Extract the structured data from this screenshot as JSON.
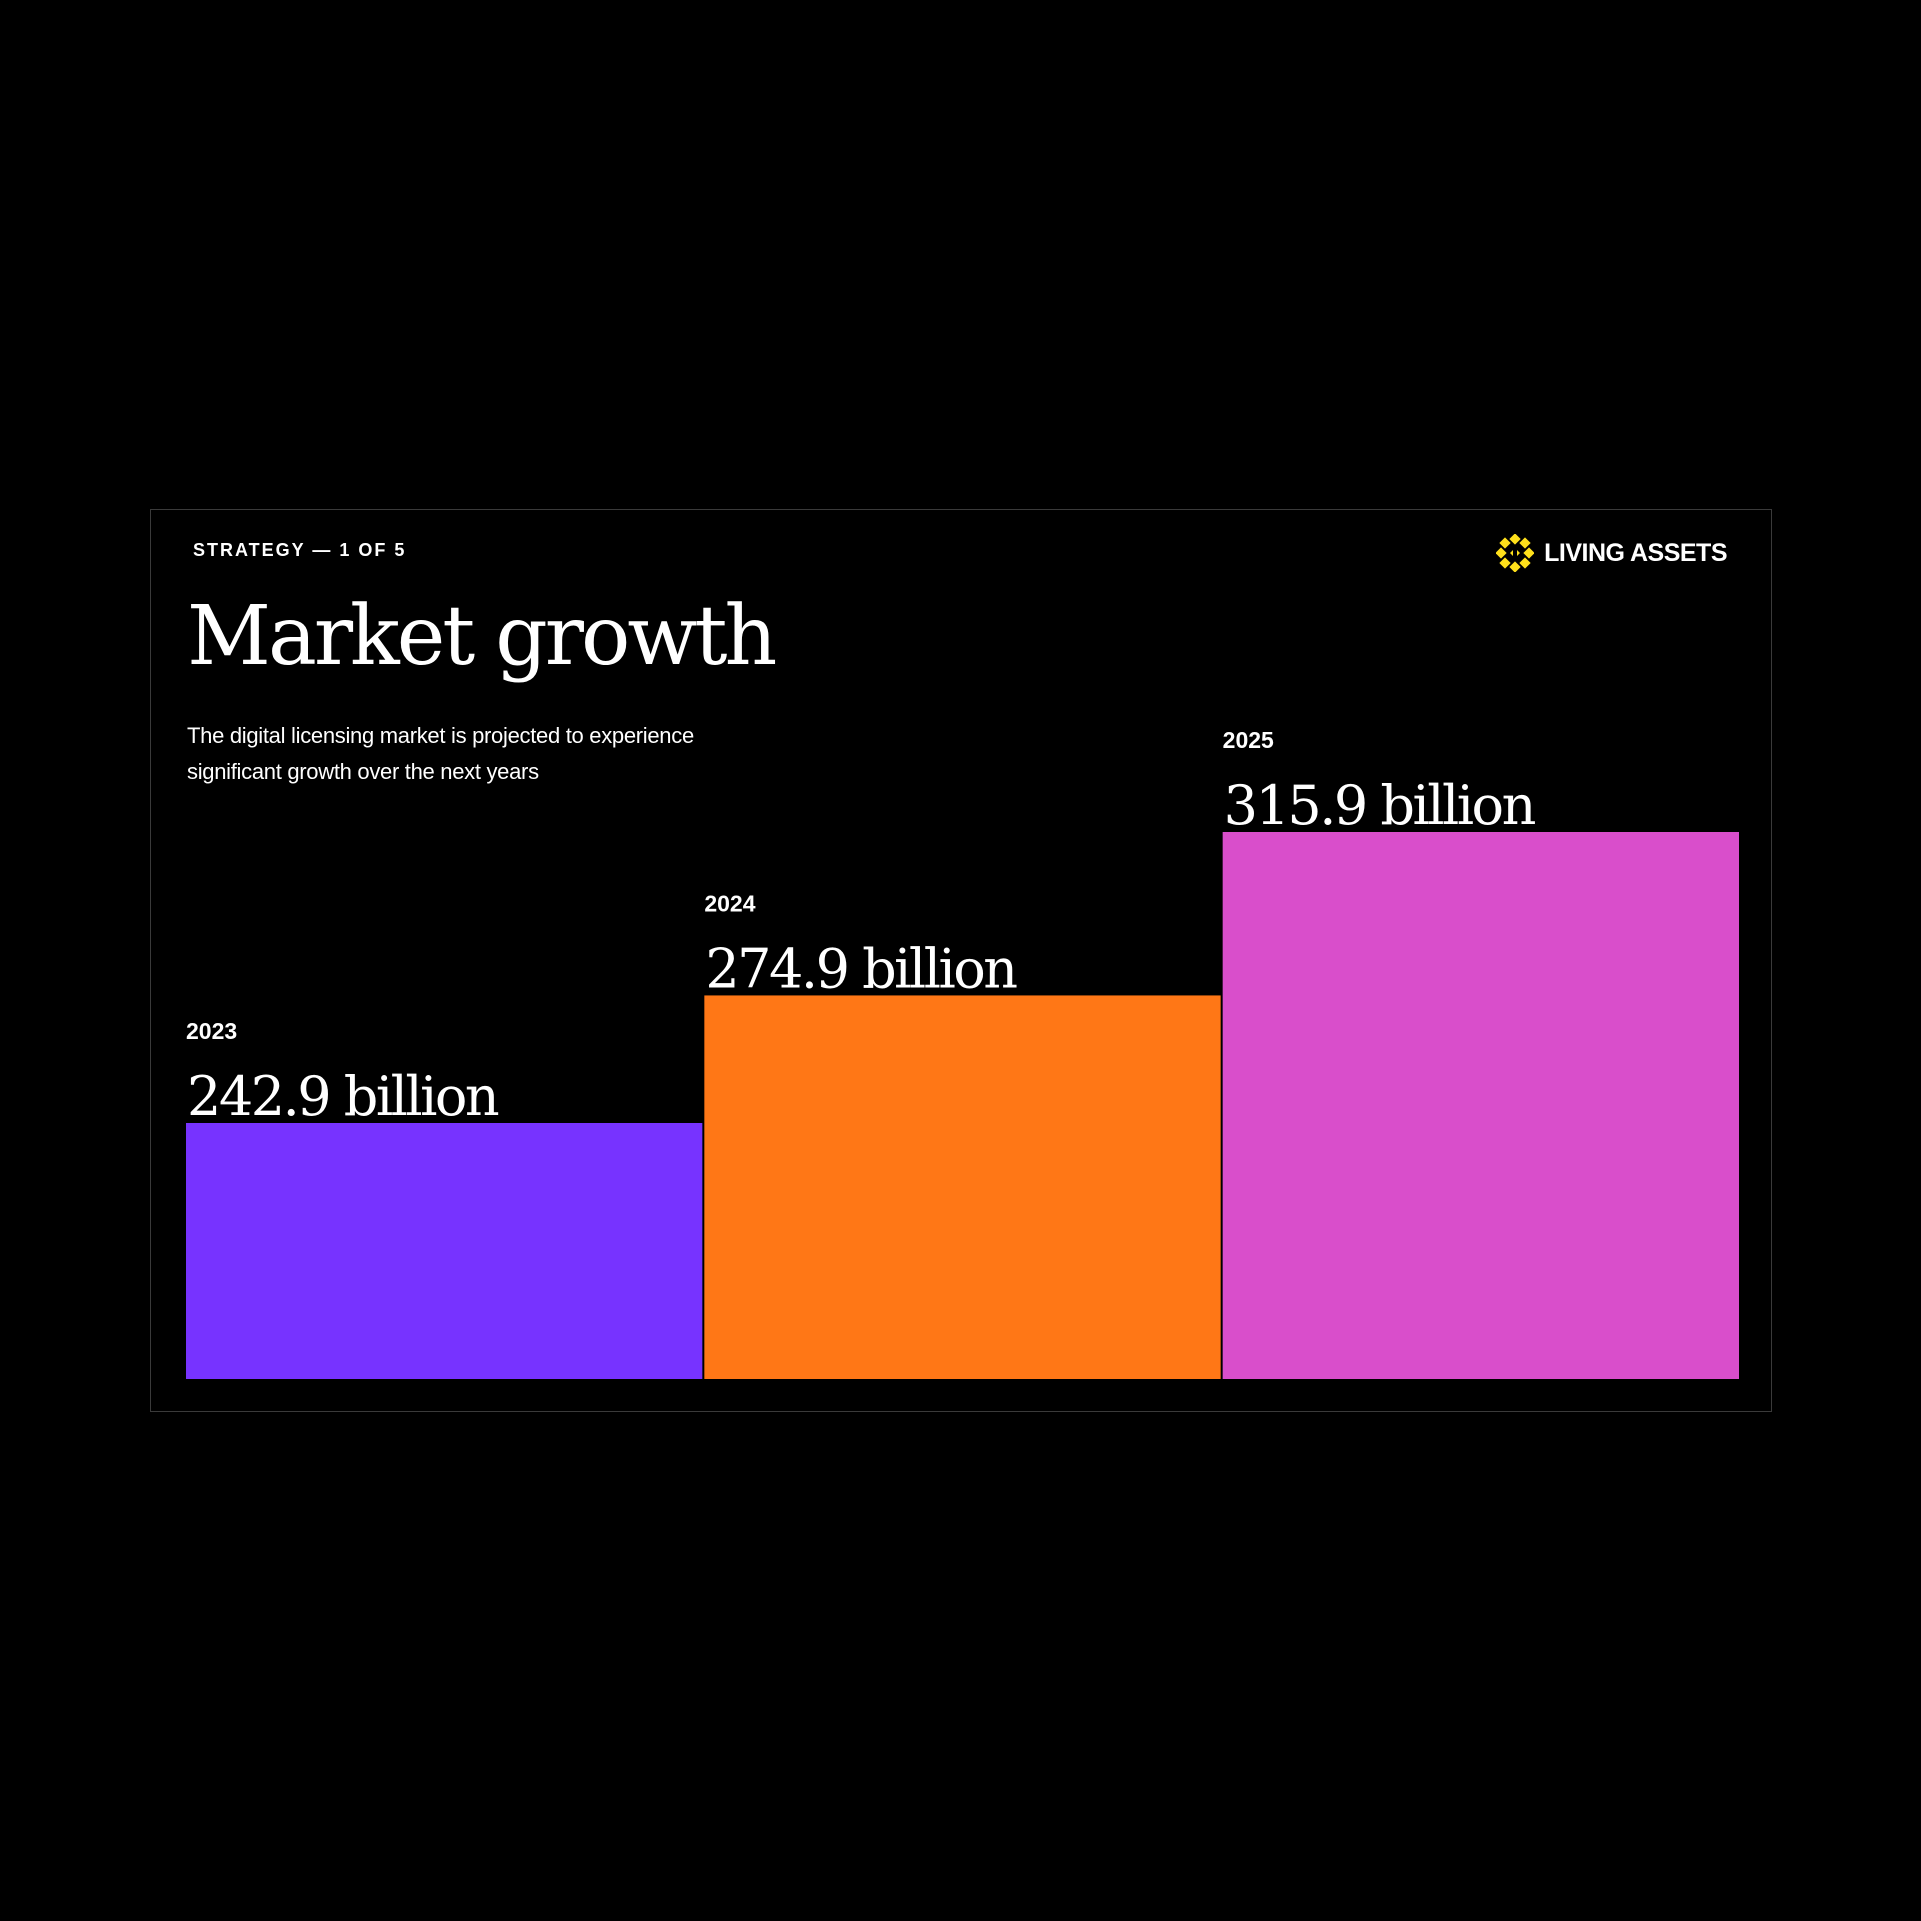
{
  "slide": {
    "eyebrow": "STRATEGY — 1 OF 5",
    "brand": "LIVING ASSETS",
    "brand_icon": "sun-icon",
    "title": "Market growth",
    "subtitle": "The digital licensing market is projected to experience significant growth over the next years"
  },
  "colors": {
    "background": "#000000",
    "brand_icon": "#FFE01B",
    "bars": [
      "#7733FF",
      "#FF7716",
      "#D94ECB"
    ]
  },
  "chart_data": {
    "type": "bar",
    "categories": [
      "2023",
      "2024",
      "2025"
    ],
    "values": [
      242.9,
      274.9,
      315.9
    ],
    "value_labels": [
      "242.9 billion",
      "274.9 billion",
      "315.9 billion"
    ],
    "title": "Market growth",
    "xlabel": "",
    "ylabel": "",
    "grid": false,
    "legend": "none"
  }
}
